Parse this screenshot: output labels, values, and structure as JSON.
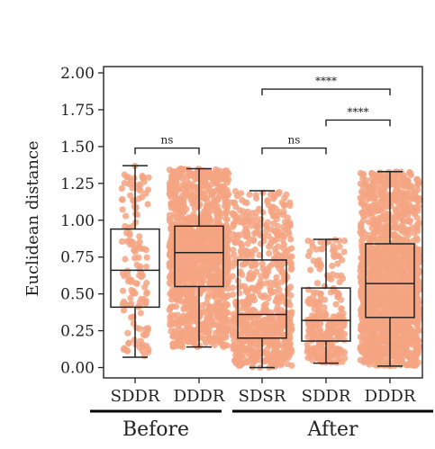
{
  "chart_data": {
    "type": "box_swarm",
    "ylabel": "Euclidean distance",
    "ylim": [
      0.0,
      2.0
    ],
    "yticks": [
      "0.00",
      "0.25",
      "0.50",
      "0.75",
      "1.00",
      "1.25",
      "1.50",
      "1.75",
      "2.00"
    ],
    "categories": [
      "SDDR",
      "DDDR",
      "SDSR",
      "SDDR",
      "DDDR"
    ],
    "groups": [
      {
        "label": "Before",
        "categories": [
          0,
          1
        ]
      },
      {
        "label": "After",
        "categories": [
          2,
          3,
          4
        ]
      }
    ],
    "point_color": "#f4a582",
    "boxes": [
      {
        "category": "SDDR",
        "group": "Before",
        "whisker_low": 0.07,
        "q1": 0.41,
        "median": 0.66,
        "q3": 0.94,
        "whisker_high": 1.37,
        "n_points": 140
      },
      {
        "category": "DDDR",
        "group": "Before",
        "whisker_low": 0.14,
        "q1": 0.55,
        "median": 0.78,
        "q3": 0.96,
        "whisker_high": 1.35,
        "n_points": 1300
      },
      {
        "category": "SDSR",
        "group": "After",
        "whisker_low": 0.0,
        "q1": 0.2,
        "median": 0.36,
        "q3": 0.73,
        "whisker_high": 1.2,
        "n_points": 700
      },
      {
        "category": "SDDR",
        "group": "After",
        "whisker_low": 0.03,
        "q1": 0.18,
        "median": 0.32,
        "q3": 0.54,
        "whisker_high": 0.87,
        "n_points": 260
      },
      {
        "category": "DDDR",
        "group": "After",
        "whisker_low": 0.01,
        "q1": 0.34,
        "median": 0.57,
        "q3": 0.84,
        "whisker_high": 1.33,
        "n_points": 1600
      }
    ],
    "significance": [
      {
        "from": 0,
        "to": 1,
        "y": 1.49,
        "label": "ns"
      },
      {
        "from": 2,
        "to": 3,
        "y": 1.49,
        "label": "ns"
      },
      {
        "from": 3,
        "to": 4,
        "y": 1.68,
        "label": "****"
      },
      {
        "from": 2,
        "to": 4,
        "y": 1.89,
        "label": "****"
      }
    ]
  }
}
